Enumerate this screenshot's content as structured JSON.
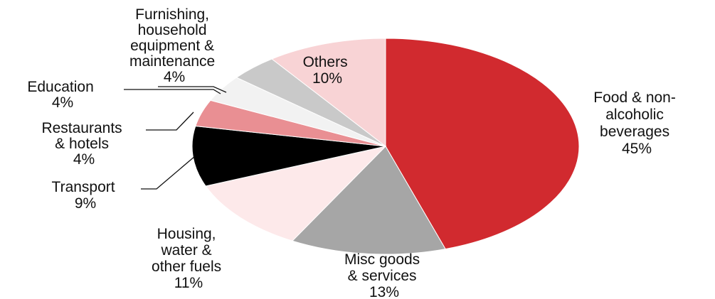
{
  "chart_data": {
    "type": "pie",
    "title": "",
    "slices": [
      {
        "label": "Food & non-alcoholic beverages",
        "label_lines": [
          "Food & non-",
          "alcoholic",
          "beverages"
        ],
        "value": 45,
        "value_label": "45%",
        "color": "#d12a2f"
      },
      {
        "label": "Misc goods & services",
        "label_lines": [
          "Misc goods",
          "& services"
        ],
        "value": 13,
        "value_label": "13%",
        "color": "#a6a6a6"
      },
      {
        "label": "Housing, water & other fuels",
        "label_lines": [
          "Housing,",
          "water &",
          "other fuels"
        ],
        "value": 11,
        "value_label": "11%",
        "color": "#fde9ea"
      },
      {
        "label": "Transport",
        "label_lines": [
          "Transport"
        ],
        "value": 9,
        "value_label": "9%",
        "color": "#000000"
      },
      {
        "label": "Restaurants & hotels",
        "label_lines": [
          "Restaurants",
          "& hotels"
        ],
        "value": 4,
        "value_label": "4%",
        "color": "#e98f93"
      },
      {
        "label": "Education",
        "label_lines": [
          "Education"
        ],
        "value": 4,
        "value_label": "4%",
        "color": "#f2f2f2"
      },
      {
        "label": "Furnishing, household equipment & maintenance",
        "label_lines": [
          "Furnishing,",
          "household",
          "equipment &",
          "maintenance"
        ],
        "value": 4,
        "value_label": "4%",
        "color": "#c9c9c9"
      },
      {
        "label": "Others",
        "label_lines": [
          "Others"
        ],
        "value": 10,
        "value_label": "10%",
        "color": "#f8d3d5"
      }
    ]
  }
}
